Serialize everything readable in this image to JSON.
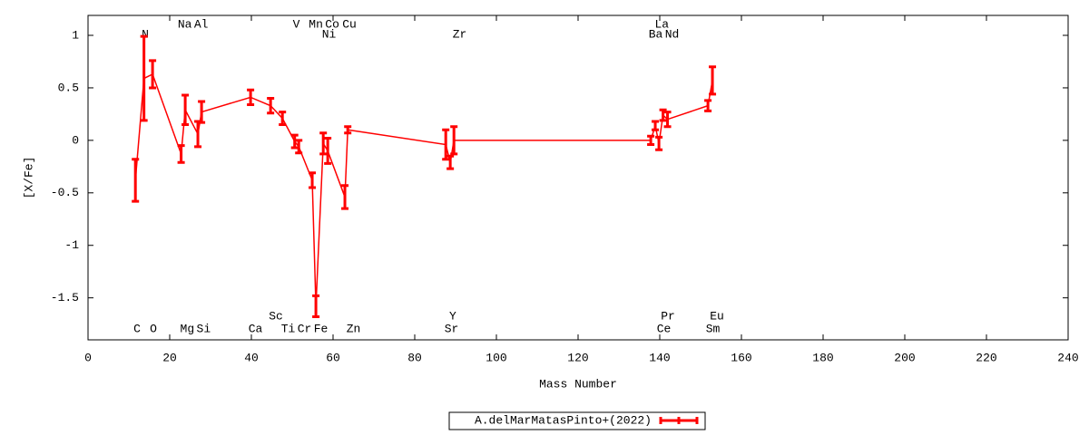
{
  "chart_data": {
    "type": "errorline",
    "xlabel": "Mass Number",
    "ylabel": "[X/Fe]",
    "xlim": [
      0,
      240
    ],
    "ylim": [
      -1.9,
      1.19
    ],
    "xticks": [
      0,
      20,
      40,
      60,
      80,
      100,
      120,
      140,
      160,
      180,
      200,
      220,
      240
    ],
    "yticks": [
      -1.5,
      -1,
      -0.5,
      0,
      0.5,
      1
    ],
    "series": [
      {
        "name": "A.delMarMatasPinto+(2022)",
        "color": "#ff0000",
        "x": [
          11.6,
          13.7,
          15.8,
          22.8,
          23.8,
          26.9,
          27.8,
          39.8,
          44.7,
          47.6,
          50.6,
          51.6,
          54.9,
          55.8,
          57.6,
          58.7,
          62.9,
          63.6,
          87.6,
          88.7,
          89.6,
          137.8,
          138.9,
          139.8,
          140.8,
          141.9,
          151.8,
          152.9
        ],
        "values": [
          -0.38,
          0.59,
          0.63,
          -0.13,
          0.29,
          0.06,
          0.27,
          0.41,
          0.33,
          0.21,
          -0.01,
          -0.06,
          -0.38,
          -1.58,
          -0.03,
          -0.1,
          -0.54,
          0.1,
          -0.04,
          -0.21,
          0,
          0,
          0.14,
          -0.03,
          0.24,
          0.2,
          0.33,
          0.57
        ],
        "errors": [
          0.2,
          0.4,
          0.13,
          0.08,
          0.14,
          0.12,
          0.1,
          0.07,
          0.07,
          0.06,
          0.06,
          0.06,
          0.07,
          0.1,
          0.1,
          0.12,
          0.11,
          0.03,
          0.14,
          0.06,
          0.13,
          0.04,
          0.04,
          0.06,
          0.05,
          0.07,
          0.05,
          0.13
        ]
      }
    ],
    "annotations": [
      {
        "text": "C",
        "x": 12
      },
      {
        "text": "O",
        "x": 16
      },
      {
        "text": "Mg",
        "x": 24.3
      },
      {
        "text": "Si",
        "x": 28.3
      },
      {
        "text": "Ca",
        "x": 41
      },
      {
        "text": "Ti",
        "x": 49
      },
      {
        "text": "Cr",
        "x": 53
      },
      {
        "text": "Fe",
        "x": 57
      },
      {
        "text": "Zn",
        "x": 65
      },
      {
        "text": "Sr",
        "x": 89
      },
      {
        "text": "Ce",
        "x": 141
      },
      {
        "text": "Sm",
        "x": 153
      },
      {
        "text": "Sc",
        "x": 46
      },
      {
        "text": "Y",
        "x": 89.3
      },
      {
        "text": "Pr",
        "x": 142
      },
      {
        "text": "Eu",
        "x": 154
      },
      {
        "text": "Na",
        "x": 23.7
      },
      {
        "text": "Al",
        "x": 27.7
      },
      {
        "text": "V",
        "x": 51
      },
      {
        "text": "Mn",
        "x": 55.8
      },
      {
        "text": "Co",
        "x": 59.8
      },
      {
        "text": "Cu",
        "x": 64
      },
      {
        "text": "La",
        "x": 140.5
      },
      {
        "text": "N",
        "x": 14
      },
      {
        "text": "Ni",
        "x": 59
      },
      {
        "text": "Zr",
        "x": 91
      },
      {
        "text": "Ba",
        "x": 139
      },
      {
        "text": "Nd",
        "x": 143
      }
    ]
  }
}
